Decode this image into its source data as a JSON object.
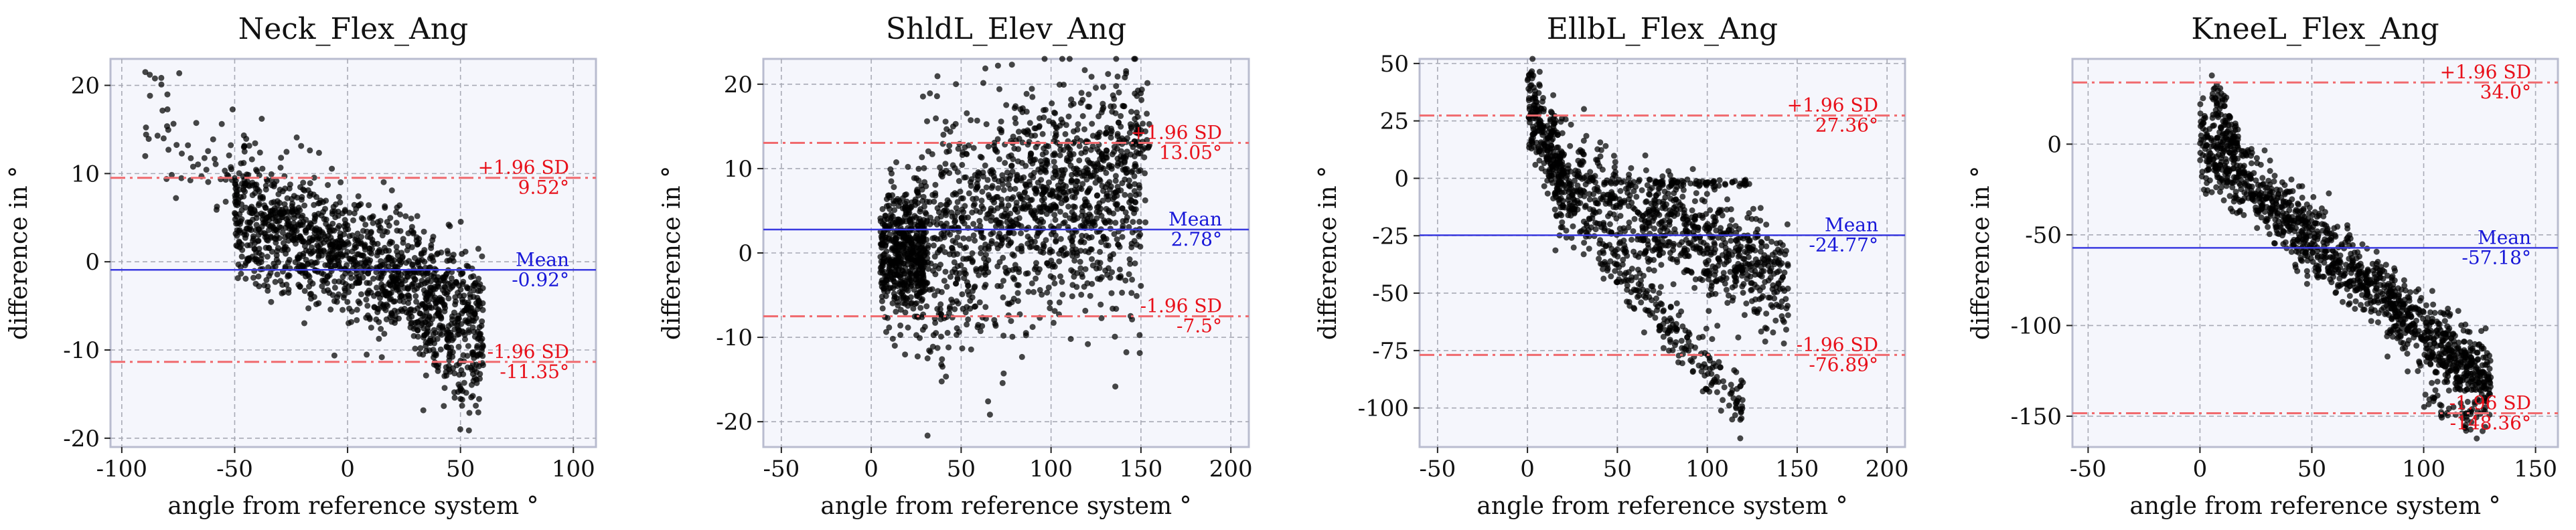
{
  "chart_data": [
    {
      "type": "scatter",
      "title": "Neck_Flex_Ang",
      "xlabel": "angle from reference system °",
      "ylabel": "difference in °",
      "xlim": [
        -105,
        110
      ],
      "ylim": [
        -21,
        23
      ],
      "xticks": [
        -100,
        -50,
        0,
        50,
        100
      ],
      "yticks": [
        -20,
        -10,
        0,
        10,
        20
      ],
      "xtick_labels": [
        "-100",
        "-50",
        "0",
        "50",
        "100"
      ],
      "ytick_labels": [
        "-20",
        "-10",
        "0",
        "10",
        "20"
      ],
      "mean": -0.92,
      "upper_loa": 9.52,
      "lower_loa": -11.35,
      "upper_label": "+1.96 SD",
      "upper_value": "9.52°",
      "mean_label": "Mean",
      "mean_value": "-0.92°",
      "lower_label": "-1.96 SD",
      "lower_value": "-11.35°",
      "clusters": [
        {
          "x": [
            -50,
            60
          ],
          "y_at_start": 6,
          "y_at_end": -6,
          "spread": 3.5,
          "count": 1300
        },
        {
          "x": [
            -90,
            -45
          ],
          "y_at_start": 15,
          "y_at_end": 10,
          "spread": 3,
          "count": 60
        },
        {
          "x": [
            -90,
            -75
          ],
          "y_at_start": 20,
          "y_at_end": 20,
          "spread": 0.8,
          "count": 6
        },
        {
          "x": [
            30,
            60
          ],
          "y_at_start": -8,
          "y_at_end": -13,
          "spread": 3,
          "count": 120
        }
      ]
    },
    {
      "type": "scatter",
      "title": "ShldL_Elev_Ang",
      "xlabel": "angle from reference system °",
      "ylabel": "difference in °",
      "xlim": [
        -60,
        210
      ],
      "ylim": [
        -23,
        23
      ],
      "xticks": [
        -50,
        0,
        50,
        100,
        150,
        200
      ],
      "yticks": [
        -20,
        -10,
        0,
        10,
        20
      ],
      "xtick_labels": [
        "-50",
        "0",
        "50",
        "100",
        "150",
        "200"
      ],
      "ytick_labels": [
        "-20",
        "-10",
        "0",
        "10",
        "20"
      ],
      "mean": 2.78,
      "upper_loa": 13.05,
      "lower_loa": -7.5,
      "upper_label": "+1.96 SD",
      "upper_value": "13.05°",
      "mean_label": "Mean",
      "mean_value": "2.78°",
      "lower_label": "-1.96 SD",
      "lower_value": "-7.5°",
      "clusters": [
        {
          "x": [
            5,
            30
          ],
          "y_at_start": 0,
          "y_at_end": 0,
          "spread": 4,
          "count": 500
        },
        {
          "x": [
            25,
            150
          ],
          "y_at_start": 1,
          "y_at_end": 7,
          "spread": 7,
          "count": 1100
        },
        {
          "x": [
            80,
            155
          ],
          "y_at_start": 8,
          "y_at_end": 14,
          "spread": 5,
          "count": 250
        }
      ]
    },
    {
      "type": "scatter",
      "title": "EllbL_Flex_Ang",
      "xlabel": "angle from reference system °",
      "ylabel": "difference in °",
      "xlim": [
        -60,
        210
      ],
      "ylim": [
        -117,
        52
      ],
      "xticks": [
        -50,
        0,
        50,
        100,
        150,
        200
      ],
      "yticks": [
        -100,
        -75,
        -50,
        -25,
        0,
        25,
        50
      ],
      "xtick_labels": [
        "-50",
        "0",
        "50",
        "100",
        "150",
        "200"
      ],
      "ytick_labels": [
        "-100",
        "-75",
        "-50",
        "-25",
        "0",
        "25",
        "50"
      ],
      "mean": -24.77,
      "upper_loa": 27.36,
      "lower_loa": -76.89,
      "upper_label": "+1.96 SD",
      "upper_value": "27.36°",
      "mean_label": "Mean",
      "mean_value": "-24.77°",
      "lower_label": "-1.96 SD",
      "lower_value": "-76.89°",
      "clusters": [
        {
          "x": [
            0,
            20
          ],
          "y_at_start": 35,
          "y_at_end": 0,
          "spread": 10,
          "count": 250
        },
        {
          "x": [
            15,
            145
          ],
          "y_at_start": 0,
          "y_at_end": -45,
          "spread": 12,
          "count": 900
        },
        {
          "x": [
            40,
            120
          ],
          "y_at_start": -30,
          "y_at_end": -100,
          "spread": 6,
          "count": 220
        },
        {
          "x": [
            70,
            125
          ],
          "y_at_start": -2,
          "y_at_end": -2,
          "spread": 0.8,
          "count": 60
        }
      ]
    },
    {
      "type": "scatter",
      "title": "KneeL_Flex_Ang",
      "xlabel": "angle from reference system °",
      "ylabel": "difference in °",
      "xlim": [
        -57,
        160
      ],
      "ylim": [
        -167,
        47
      ],
      "xticks": [
        -50,
        0,
        50,
        100,
        150
      ],
      "yticks": [
        -150,
        -100,
        -50,
        0
      ],
      "xtick_labels": [
        "-50",
        "0",
        "50",
        "100",
        "150"
      ],
      "ytick_labels": [
        "-150",
        "-100",
        "-50",
        "0"
      ],
      "mean": -57.18,
      "upper_loa": 34.0,
      "lower_loa": -148.36,
      "upper_label": "+1.96 SD",
      "upper_value": "34.0°",
      "mean_label": "Mean",
      "mean_value": "-57.18°",
      "lower_label": "-1.96 SD",
      "lower_value": "-148.36°",
      "clusters": [
        {
          "x": [
            0,
            130
          ],
          "y_at_start": 0,
          "y_at_end": -135,
          "spread": 10,
          "count": 1300
        },
        {
          "x": [
            5,
            20
          ],
          "y_at_start": 30,
          "y_at_end": -10,
          "spread": 8,
          "count": 90
        },
        {
          "x": [
            100,
            125
          ],
          "y_at_start": -140,
          "y_at_end": -155,
          "spread": 5,
          "count": 40
        }
      ]
    }
  ]
}
